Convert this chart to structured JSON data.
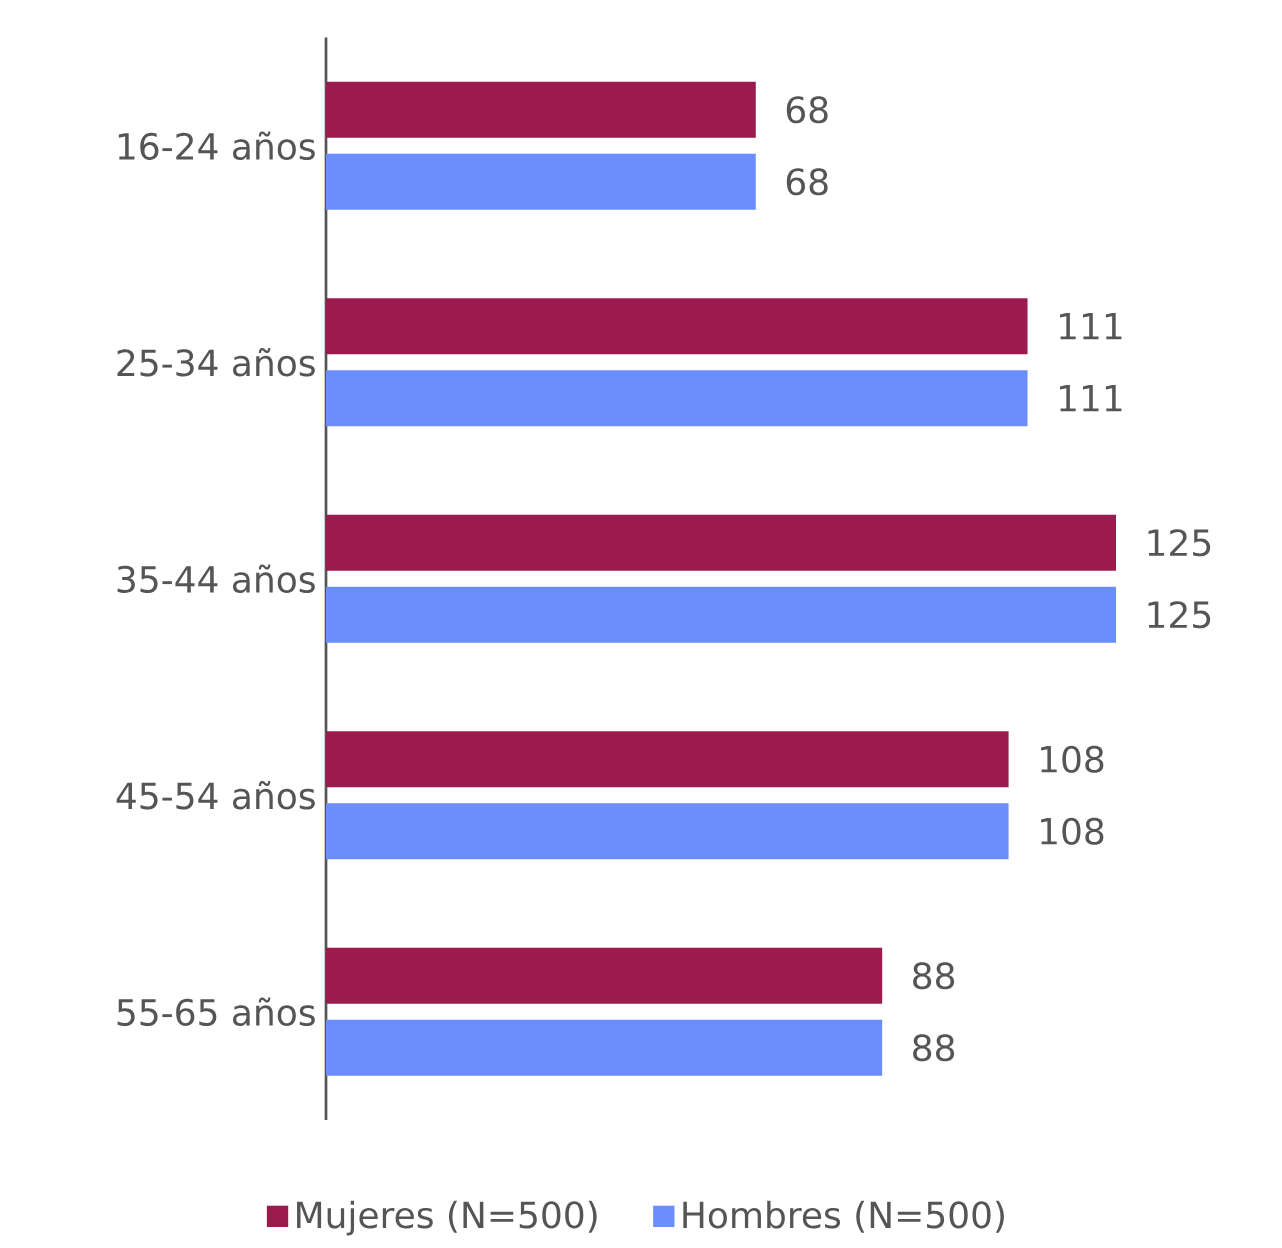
{
  "chart_data": {
    "type": "bar",
    "orientation": "horizontal",
    "data_labels": true,
    "legend": "bottom",
    "categories": [
      "16-24 años",
      "25-34 años",
      "35-44 años",
      "45-54 años",
      "55-65 años"
    ],
    "series": [
      {
        "name": "Mujeres (N=500)",
        "color": "#9c1a4e",
        "values": [
          68,
          111,
          125,
          108,
          88
        ]
      },
      {
        "name": "Hombres (N=500)",
        "color": "#6b8eff",
        "values": [
          68,
          111,
          125,
          108,
          88
        ]
      }
    ]
  }
}
